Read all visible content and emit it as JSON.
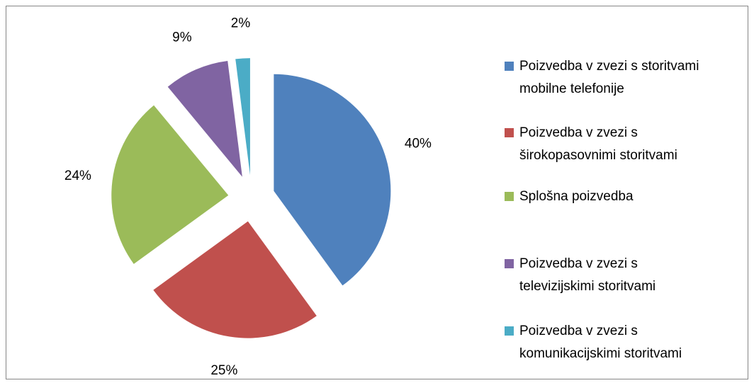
{
  "chart_data": {
    "type": "pie",
    "categories": [
      "Poizvedba v zvezi s storitvami\nmobilne telefonije",
      "Poizvedba v zvezi s\nširokopasovnimi storitvami",
      "Splošna poizvedba",
      "Poizvedba v zvezi s\ntelevizijskimi storitvami",
      "Poizvedba v zvezi s\nkomunikacijskimi storitvami"
    ],
    "values": [
      40,
      25,
      24,
      9,
      2
    ],
    "value_labels": [
      "40%",
      "25%",
      "24%",
      "9%",
      "2%"
    ],
    "colors": [
      "#4f81bd",
      "#c0504d",
      "#9bbb59",
      "#8064a2",
      "#4bacc6"
    ],
    "exploded": true,
    "legend": "right"
  }
}
